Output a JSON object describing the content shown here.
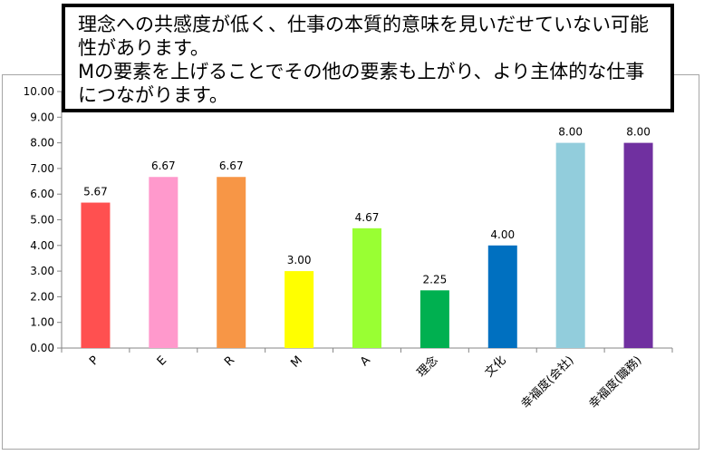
{
  "callout": {
    "line1": "理念への共感度が低く、仕事の本質的意味を見いだせていない可能性があります。",
    "line2": "Mの要素を上げることでその他の要素も上がり、より主体的な仕事につながります。"
  },
  "chart_data": {
    "type": "bar",
    "categories": [
      "P",
      "E",
      "R",
      "M",
      "A",
      "理念",
      "文化",
      "幸福度(会社)",
      "幸福度(職務)"
    ],
    "values": [
      5.67,
      6.67,
      6.67,
      3.0,
      4.67,
      2.25,
      4.0,
      8.0,
      8.0
    ],
    "data_labels": [
      "5.67",
      "6.67",
      "6.67",
      "3.00",
      "4.67",
      "2.25",
      "4.00",
      "8.00",
      "8.00"
    ],
    "colors": [
      "#ff5050",
      "#ff99cc",
      "#f79646",
      "#ffff00",
      "#99ff33",
      "#00b050",
      "#0070c0",
      "#92cddc",
      "#7030a0"
    ],
    "yticks": [
      "0.00",
      "1.00",
      "2.00",
      "3.00",
      "4.00",
      "5.00",
      "6.00",
      "7.00",
      "8.00",
      "9.00",
      "10.00"
    ],
    "ylim": [
      0,
      10
    ],
    "grid": false,
    "legend": "none",
    "title": "",
    "xlabel": "",
    "ylabel": ""
  }
}
